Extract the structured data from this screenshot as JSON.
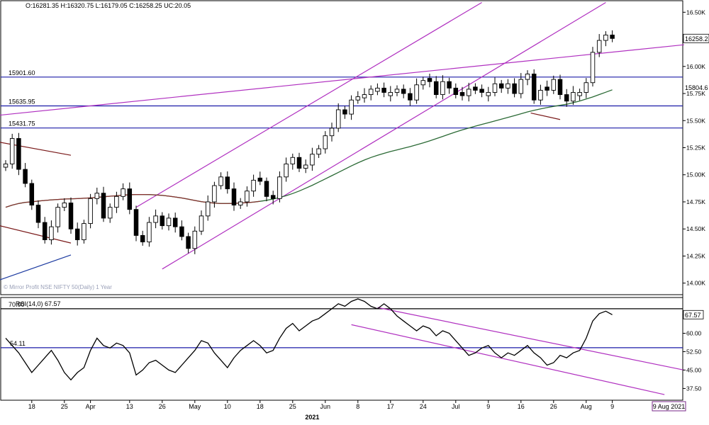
{
  "chart_data": {
    "type": "candlestick",
    "ohlc_header": "O:16281.35  H:16320.75  L:16179.05  C:16258.25  UC:20.05",
    "watermark": "© Mirror Profit NSE NIFTY 50(Daily) 1 Year",
    "price_axis": {
      "min": 13900,
      "max": 16600,
      "ticks": [
        "14.00K",
        "14.25K",
        "14.50K",
        "14.75K",
        "15.00K",
        "15.25K",
        "15.50K",
        "15.75K",
        "16.00K",
        "16.25K",
        "16.50K"
      ],
      "tick_values": [
        14000,
        14250,
        14500,
        14750,
        15000,
        15250,
        15500,
        15750,
        16000,
        16250,
        16500
      ]
    },
    "last_price_tag": {
      "label": "16258.2",
      "value": 16258.2,
      "color": "#000000"
    },
    "ma_tag": {
      "label": "15804.6",
      "value": 15804.6
    },
    "levels": [
      {
        "label": "15901.60",
        "value": 15901.6,
        "color": "#1c1ca8"
      },
      {
        "label": "15635.95",
        "value": 15635.95,
        "color": "#1c1ca8"
      },
      {
        "label": "15431.75",
        "value": 15431.75,
        "color": "#1c1ca8"
      }
    ],
    "x_labels": [
      {
        "i": 4,
        "label": "18"
      },
      {
        "i": 9,
        "label": "25"
      },
      {
        "i": 13,
        "label": "Apr"
      },
      {
        "i": 19,
        "label": "13"
      },
      {
        "i": 24,
        "label": "26"
      },
      {
        "i": 29,
        "label": "May"
      },
      {
        "i": 34,
        "label": "10"
      },
      {
        "i": 39,
        "label": "18"
      },
      {
        "i": 44,
        "label": "25"
      },
      {
        "i": 49,
        "label": "Jun"
      },
      {
        "i": 54,
        "label": "8"
      },
      {
        "i": 59,
        "label": "17"
      },
      {
        "i": 64,
        "label": "24"
      },
      {
        "i": 69,
        "label": "Jul"
      },
      {
        "i": 74,
        "label": "9"
      },
      {
        "i": 79,
        "label": "16"
      },
      {
        "i": 84,
        "label": "26"
      },
      {
        "i": 89,
        "label": "Aug"
      },
      {
        "i": 93,
        "label": "9"
      }
    ],
    "year_label": {
      "i": 47,
      "label": "2021"
    },
    "date_tag": "9 Aug 2021",
    "candles_close": [
      15100,
      15335,
      15050,
      14920,
      14720,
      14560,
      14400,
      14520,
      14700,
      14740,
      14500,
      14400,
      14550,
      14780,
      14830,
      14600,
      14700,
      14800,
      14870,
      14680,
      14440,
      14380,
      14560,
      14620,
      14530,
      14600,
      14520,
      14430,
      14320,
      14480,
      14620,
      14750,
      14900,
      14980,
      14870,
      14720,
      14750,
      14850,
      14950,
      14940,
      14800,
      14780,
      14980,
      15100,
      15160,
      15060,
      15090,
      15190,
      15240,
      15360,
      15430,
      15600,
      15560,
      15690,
      15720,
      15740,
      15790,
      15800,
      15760,
      15760,
      15790,
      15750,
      15690,
      15830,
      15870,
      15860,
      15740,
      15860,
      15800,
      15740,
      15730,
      15790,
      15780,
      15760,
      15760,
      15840,
      15800,
      15840,
      15750,
      15880,
      15930,
      15690,
      15780,
      15780,
      15880,
      15740,
      15680,
      15760,
      15760,
      15850,
      16130,
      16240,
      16290,
      16258.25
    ],
    "candles_bull": [
      true,
      true,
      false,
      false,
      false,
      false,
      false,
      true,
      true,
      true,
      false,
      false,
      true,
      true,
      true,
      false,
      true,
      true,
      true,
      false,
      false,
      false,
      true,
      true,
      false,
      true,
      false,
      false,
      false,
      true,
      true,
      true,
      true,
      true,
      false,
      false,
      true,
      true,
      true,
      false,
      false,
      false,
      true,
      true,
      true,
      false,
      true,
      true,
      true,
      true,
      true,
      true,
      false,
      true,
      true,
      true,
      true,
      true,
      false,
      true,
      true,
      false,
      false,
      true,
      true,
      false,
      false,
      true,
      false,
      false,
      false,
      true,
      false,
      false,
      true,
      true,
      false,
      true,
      false,
      true,
      true,
      false,
      true,
      false,
      true,
      false,
      false,
      true,
      true,
      true,
      true,
      true,
      true,
      false
    ],
    "ma_slow": [
      14700,
      14720,
      14735,
      14745,
      14750,
      14758,
      14763,
      14768,
      14772,
      14776,
      14778,
      14780,
      14783,
      14787,
      14792,
      14797,
      14802,
      14807,
      14812,
      14816,
      14818,
      14818,
      14817,
      14814,
      14810,
      14803,
      14795,
      14786,
      14775,
      14763,
      14752,
      14744,
      14738,
      14735,
      14735,
      14736,
      14739,
      14743,
      14748,
      14755,
      14764,
      14776,
      14790,
      14807,
      14827,
      14850,
      14876,
      14903,
      14932,
      14962,
      14992,
      15022,
      15052,
      15082,
      15110,
      15136,
      15160,
      15180,
      15198,
      15215,
      15230,
      15245,
      15260,
      15277,
      15294,
      15313,
      15333,
      15354,
      15375,
      15395,
      15414,
      15432,
      15449,
      15465,
      15481,
      15497,
      15513,
      15529,
      15546,
      15563,
      15580,
      15595,
      15608,
      15620,
      15631,
      15641,
      15651,
      15665,
      15681,
      15699,
      15718,
      15740,
      15762,
      15784
    ],
    "rsi": {
      "label": "RSI(14,0) 67.57",
      "value_tag": "67.57",
      "axis_ticks": [
        "37.50",
        "45.00",
        "52.50",
        "60.00",
        "67.50"
      ],
      "axis_values": [
        37.5,
        45,
        52.5,
        60,
        67.5
      ],
      "level_labels": [
        "70.00",
        "54.11"
      ],
      "levels": [
        70,
        54.11
      ],
      "values": [
        58,
        55,
        52,
        48,
        44,
        47,
        50,
        53,
        49,
        44,
        41,
        44,
        46,
        53,
        58,
        55,
        54,
        56,
        55,
        52,
        43,
        45,
        48,
        49,
        47,
        45,
        44,
        47,
        50,
        53,
        57,
        56,
        52,
        49,
        46,
        50,
        53,
        55,
        57,
        55,
        52,
        53,
        58,
        62,
        64,
        61,
        63,
        65,
        66,
        68,
        70,
        72,
        71,
        73,
        74,
        73,
        71,
        70,
        72,
        70,
        67,
        65,
        63,
        61,
        63,
        62,
        59,
        61,
        60,
        57,
        54,
        51,
        52,
        54,
        55,
        52,
        50,
        52,
        51,
        53,
        55,
        52,
        50,
        47,
        48,
        51,
        50,
        52,
        53,
        58,
        65,
        68,
        69,
        67.57
      ]
    }
  }
}
